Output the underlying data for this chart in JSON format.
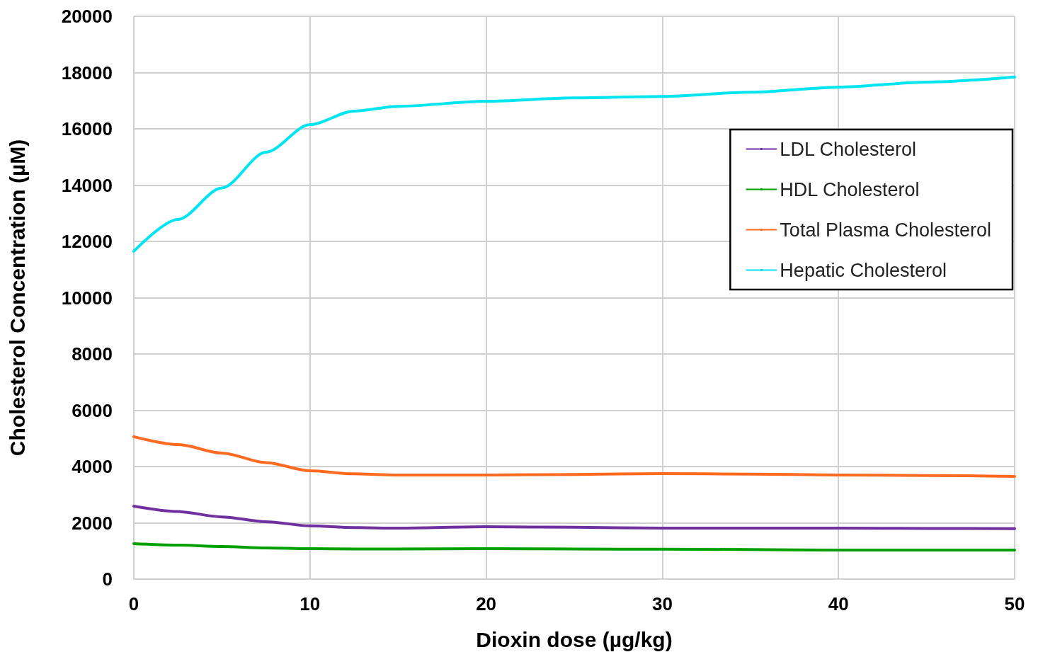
{
  "chart_data": {
    "type": "line",
    "xlabel": "Dioxin dose (µg/kg)",
    "ylabel": "Cholesterol Concentration (µM)",
    "x": [
      0,
      2.5,
      5,
      7.5,
      10,
      12.5,
      15,
      20,
      25,
      30,
      35,
      40,
      45,
      50
    ],
    "series": [
      {
        "name": "LDL Cholesterol",
        "color": "#7030a0",
        "values": [
          2590,
          2400,
          2210,
          2040,
          1890,
          1830,
          1810,
          1860,
          1840,
          1810,
          1810,
          1810,
          1800,
          1790
        ]
      },
      {
        "name": "HDL Cholesterol",
        "color": "#00a000",
        "values": [
          1260,
          1210,
          1160,
          1110,
          1080,
          1070,
          1070,
          1080,
          1070,
          1060,
          1050,
          1030,
          1030,
          1030
        ]
      },
      {
        "name": "Total Plasma Cholesterol",
        "color": "#ff6a21",
        "values": [
          5060,
          4780,
          4480,
          4140,
          3850,
          3740,
          3700,
          3700,
          3720,
          3750,
          3730,
          3700,
          3680,
          3650
        ]
      },
      {
        "name": "Hepatic Cholesterol",
        "color": "#00e5f0",
        "values": [
          11650,
          12780,
          13900,
          15170,
          16150,
          16630,
          16800,
          16980,
          17100,
          17150,
          17300,
          17480,
          17660,
          17840
        ]
      }
    ],
    "xlim": [
      0,
      50
    ],
    "xticks": [
      0,
      10,
      20,
      30,
      40,
      50
    ],
    "ylim": [
      0,
      20000
    ],
    "yticks": [
      0,
      2000,
      4000,
      6000,
      8000,
      10000,
      12000,
      14000,
      16000,
      18000,
      20000
    ],
    "grid": true,
    "legend": "top right",
    "marker": "none",
    "line_style": "solid"
  }
}
